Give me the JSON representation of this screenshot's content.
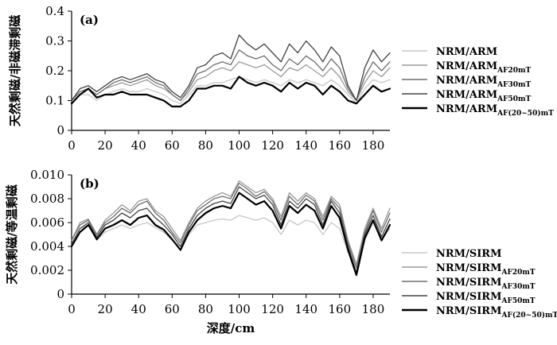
{
  "chart_data": [
    {
      "type": "line",
      "panel_label": "(a)",
      "ylabel": "天然剩磁/非磁滞剩磁",
      "xlabel": "",
      "xlim": [
        0,
        190
      ],
      "ylim": [
        0,
        0.4
      ],
      "xticks": [
        "0",
        "20",
        "40",
        "60",
        "80",
        "100",
        "120",
        "140",
        "160",
        "180"
      ],
      "yticks": [
        "0",
        "0.1",
        "0.2",
        "0.3",
        "0.4"
      ],
      "x": [
        0,
        5,
        10,
        15,
        20,
        25,
        30,
        35,
        40,
        45,
        50,
        55,
        60,
        65,
        70,
        75,
        80,
        85,
        90,
        95,
        100,
        105,
        110,
        115,
        120,
        125,
        130,
        135,
        140,
        145,
        150,
        155,
        160,
        165,
        170,
        175,
        180,
        185,
        190
      ],
      "series": [
        {
          "base": "NRM/ARM",
          "sub": "",
          "color": "#c8c8c8",
          "width": 1.3,
          "values": [
            0.09,
            0.12,
            0.12,
            0.1,
            0.12,
            0.13,
            0.14,
            0.13,
            0.13,
            0.14,
            0.13,
            0.12,
            0.1,
            0.09,
            0.12,
            0.15,
            0.15,
            0.16,
            0.16,
            0.17,
            0.18,
            0.17,
            0.16,
            0.17,
            0.16,
            0.15,
            0.17,
            0.16,
            0.17,
            0.16,
            0.15,
            0.17,
            0.15,
            0.12,
            0.09,
            0.14,
            0.17,
            0.16,
            0.17
          ]
        },
        {
          "base": "NRM/ARM",
          "sub": "AF20mT",
          "color": "#9a9a9a",
          "width": 1.3,
          "values": [
            0.1,
            0.13,
            0.14,
            0.12,
            0.14,
            0.15,
            0.16,
            0.15,
            0.16,
            0.17,
            0.15,
            0.14,
            0.12,
            0.1,
            0.13,
            0.17,
            0.18,
            0.2,
            0.21,
            0.2,
            0.23,
            0.22,
            0.21,
            0.22,
            0.2,
            0.18,
            0.21,
            0.2,
            0.22,
            0.2,
            0.18,
            0.21,
            0.18,
            0.13,
            0.1,
            0.16,
            0.2,
            0.18,
            0.21
          ]
        },
        {
          "base": "NRM/ARM",
          "sub": "AF30mT",
          "color": "#6e6e6e",
          "width": 1.3,
          "values": [
            0.1,
            0.13,
            0.14,
            0.12,
            0.14,
            0.16,
            0.17,
            0.16,
            0.17,
            0.18,
            0.16,
            0.15,
            0.12,
            0.1,
            0.14,
            0.19,
            0.2,
            0.22,
            0.23,
            0.22,
            0.27,
            0.25,
            0.24,
            0.25,
            0.22,
            0.2,
            0.24,
            0.22,
            0.25,
            0.23,
            0.2,
            0.24,
            0.21,
            0.14,
            0.1,
            0.18,
            0.23,
            0.2,
            0.23
          ]
        },
        {
          "base": "NRM/ARM",
          "sub": "AF50mT",
          "color": "#444444",
          "width": 1.3,
          "values": [
            0.1,
            0.14,
            0.15,
            0.13,
            0.15,
            0.17,
            0.18,
            0.17,
            0.18,
            0.19,
            0.17,
            0.16,
            0.13,
            0.11,
            0.15,
            0.21,
            0.22,
            0.25,
            0.26,
            0.24,
            0.32,
            0.29,
            0.27,
            0.29,
            0.26,
            0.23,
            0.29,
            0.26,
            0.3,
            0.27,
            0.23,
            0.28,
            0.25,
            0.15,
            0.1,
            0.21,
            0.27,
            0.23,
            0.26
          ]
        },
        {
          "base": "NRM/ARM",
          "sub": "AF(20~50)mT",
          "color": "#000000",
          "width": 2.2,
          "values": [
            0.09,
            0.12,
            0.14,
            0.11,
            0.12,
            0.12,
            0.13,
            0.12,
            0.12,
            0.12,
            0.11,
            0.1,
            0.08,
            0.08,
            0.1,
            0.14,
            0.14,
            0.15,
            0.15,
            0.14,
            0.18,
            0.16,
            0.15,
            0.16,
            0.15,
            0.13,
            0.16,
            0.14,
            0.16,
            0.15,
            0.12,
            0.15,
            0.13,
            0.1,
            0.09,
            0.12,
            0.15,
            0.13,
            0.14
          ]
        }
      ]
    },
    {
      "type": "line",
      "panel_label": "(b)",
      "ylabel": "天然剩磁/等温剩磁",
      "xlabel": "深度/cm",
      "xlim": [
        0,
        190
      ],
      "ylim": [
        0,
        0.01
      ],
      "xticks": [
        "0",
        "20",
        "40",
        "60",
        "80",
        "100",
        "120",
        "140",
        "160",
        "180"
      ],
      "yticks": [
        "0",
        "0.002",
        "0.004",
        "0.006",
        "0.008",
        "0.010"
      ],
      "x": [
        0,
        5,
        10,
        15,
        20,
        25,
        30,
        35,
        40,
        45,
        50,
        55,
        60,
        65,
        70,
        75,
        80,
        85,
        90,
        95,
        100,
        105,
        110,
        115,
        120,
        125,
        130,
        135,
        140,
        145,
        150,
        155,
        160,
        165,
        170,
        175,
        180,
        185,
        190
      ],
      "series": [
        {
          "base": "NRM/SIRM",
          "sub": "",
          "color": "#c8c8c8",
          "width": 1.3,
          "values": [
            0.004,
            0.0055,
            0.0058,
            0.0045,
            0.0052,
            0.0055,
            0.0058,
            0.0055,
            0.0058,
            0.006,
            0.0056,
            0.0052,
            0.0045,
            0.004,
            0.005,
            0.0058,
            0.006,
            0.0062,
            0.0063,
            0.0062,
            0.0066,
            0.0064,
            0.0062,
            0.0064,
            0.006,
            0.005,
            0.0062,
            0.0058,
            0.0062,
            0.006,
            0.005,
            0.006,
            0.0055,
            0.0035,
            0.0025,
            0.0045,
            0.006,
            0.0045,
            0.0055
          ]
        },
        {
          "base": "NRM/SIRM",
          "sub": "AF20mT",
          "color": "#9a9a9a",
          "width": 1.3,
          "values": [
            0.0045,
            0.006,
            0.0063,
            0.005,
            0.0062,
            0.0068,
            0.0075,
            0.007,
            0.0078,
            0.008,
            0.007,
            0.0065,
            0.0055,
            0.0045,
            0.006,
            0.0072,
            0.0078,
            0.0082,
            0.0085,
            0.0082,
            0.0095,
            0.009,
            0.0085,
            0.0088,
            0.008,
            0.0065,
            0.0085,
            0.0078,
            0.0085,
            0.008,
            0.0065,
            0.0082,
            0.0075,
            0.0045,
            0.0025,
            0.0055,
            0.0072,
            0.0055,
            0.0072
          ]
        },
        {
          "base": "NRM/SIRM",
          "sub": "AF30mT",
          "color": "#6e6e6e",
          "width": 1.3,
          "values": [
            0.0045,
            0.0058,
            0.0062,
            0.005,
            0.006,
            0.0065,
            0.0072,
            0.0068,
            0.0075,
            0.0078,
            0.0068,
            0.0062,
            0.0052,
            0.0043,
            0.0058,
            0.007,
            0.0075,
            0.008,
            0.0082,
            0.008,
            0.0093,
            0.0088,
            0.0082,
            0.0086,
            0.0078,
            0.0062,
            0.0082,
            0.0075,
            0.0083,
            0.0078,
            0.0062,
            0.008,
            0.0072,
            0.0043,
            0.0022,
            0.0052,
            0.007,
            0.0052,
            0.0068
          ]
        },
        {
          "base": "NRM/SIRM",
          "sub": "AF50mT",
          "color": "#444444",
          "width": 1.3,
          "values": [
            0.0042,
            0.0055,
            0.006,
            0.0048,
            0.0058,
            0.0062,
            0.0068,
            0.0064,
            0.007,
            0.0072,
            0.0064,
            0.0058,
            0.005,
            0.004,
            0.0055,
            0.0066,
            0.0072,
            0.0076,
            0.0078,
            0.0076,
            0.009,
            0.0085,
            0.008,
            0.0083,
            0.0075,
            0.0058,
            0.0078,
            0.0072,
            0.008,
            0.0075,
            0.0058,
            0.0078,
            0.0068,
            0.004,
            0.0018,
            0.005,
            0.0066,
            0.0048,
            0.0063
          ]
        },
        {
          "base": "NRM/SIRM",
          "sub": "AF(20~50)mT",
          "color": "#000000",
          "width": 2.2,
          "values": [
            0.004,
            0.0052,
            0.0058,
            0.0046,
            0.0055,
            0.0058,
            0.0062,
            0.0058,
            0.0064,
            0.0066,
            0.0058,
            0.0054,
            0.0046,
            0.0037,
            0.0052,
            0.0062,
            0.0068,
            0.0072,
            0.0074,
            0.0072,
            0.0085,
            0.008,
            0.0075,
            0.0078,
            0.007,
            0.0055,
            0.0074,
            0.0068,
            0.0075,
            0.007,
            0.0055,
            0.0074,
            0.0064,
            0.0037,
            0.0016,
            0.0047,
            0.0062,
            0.0045,
            0.0058
          ]
        }
      ]
    }
  ]
}
